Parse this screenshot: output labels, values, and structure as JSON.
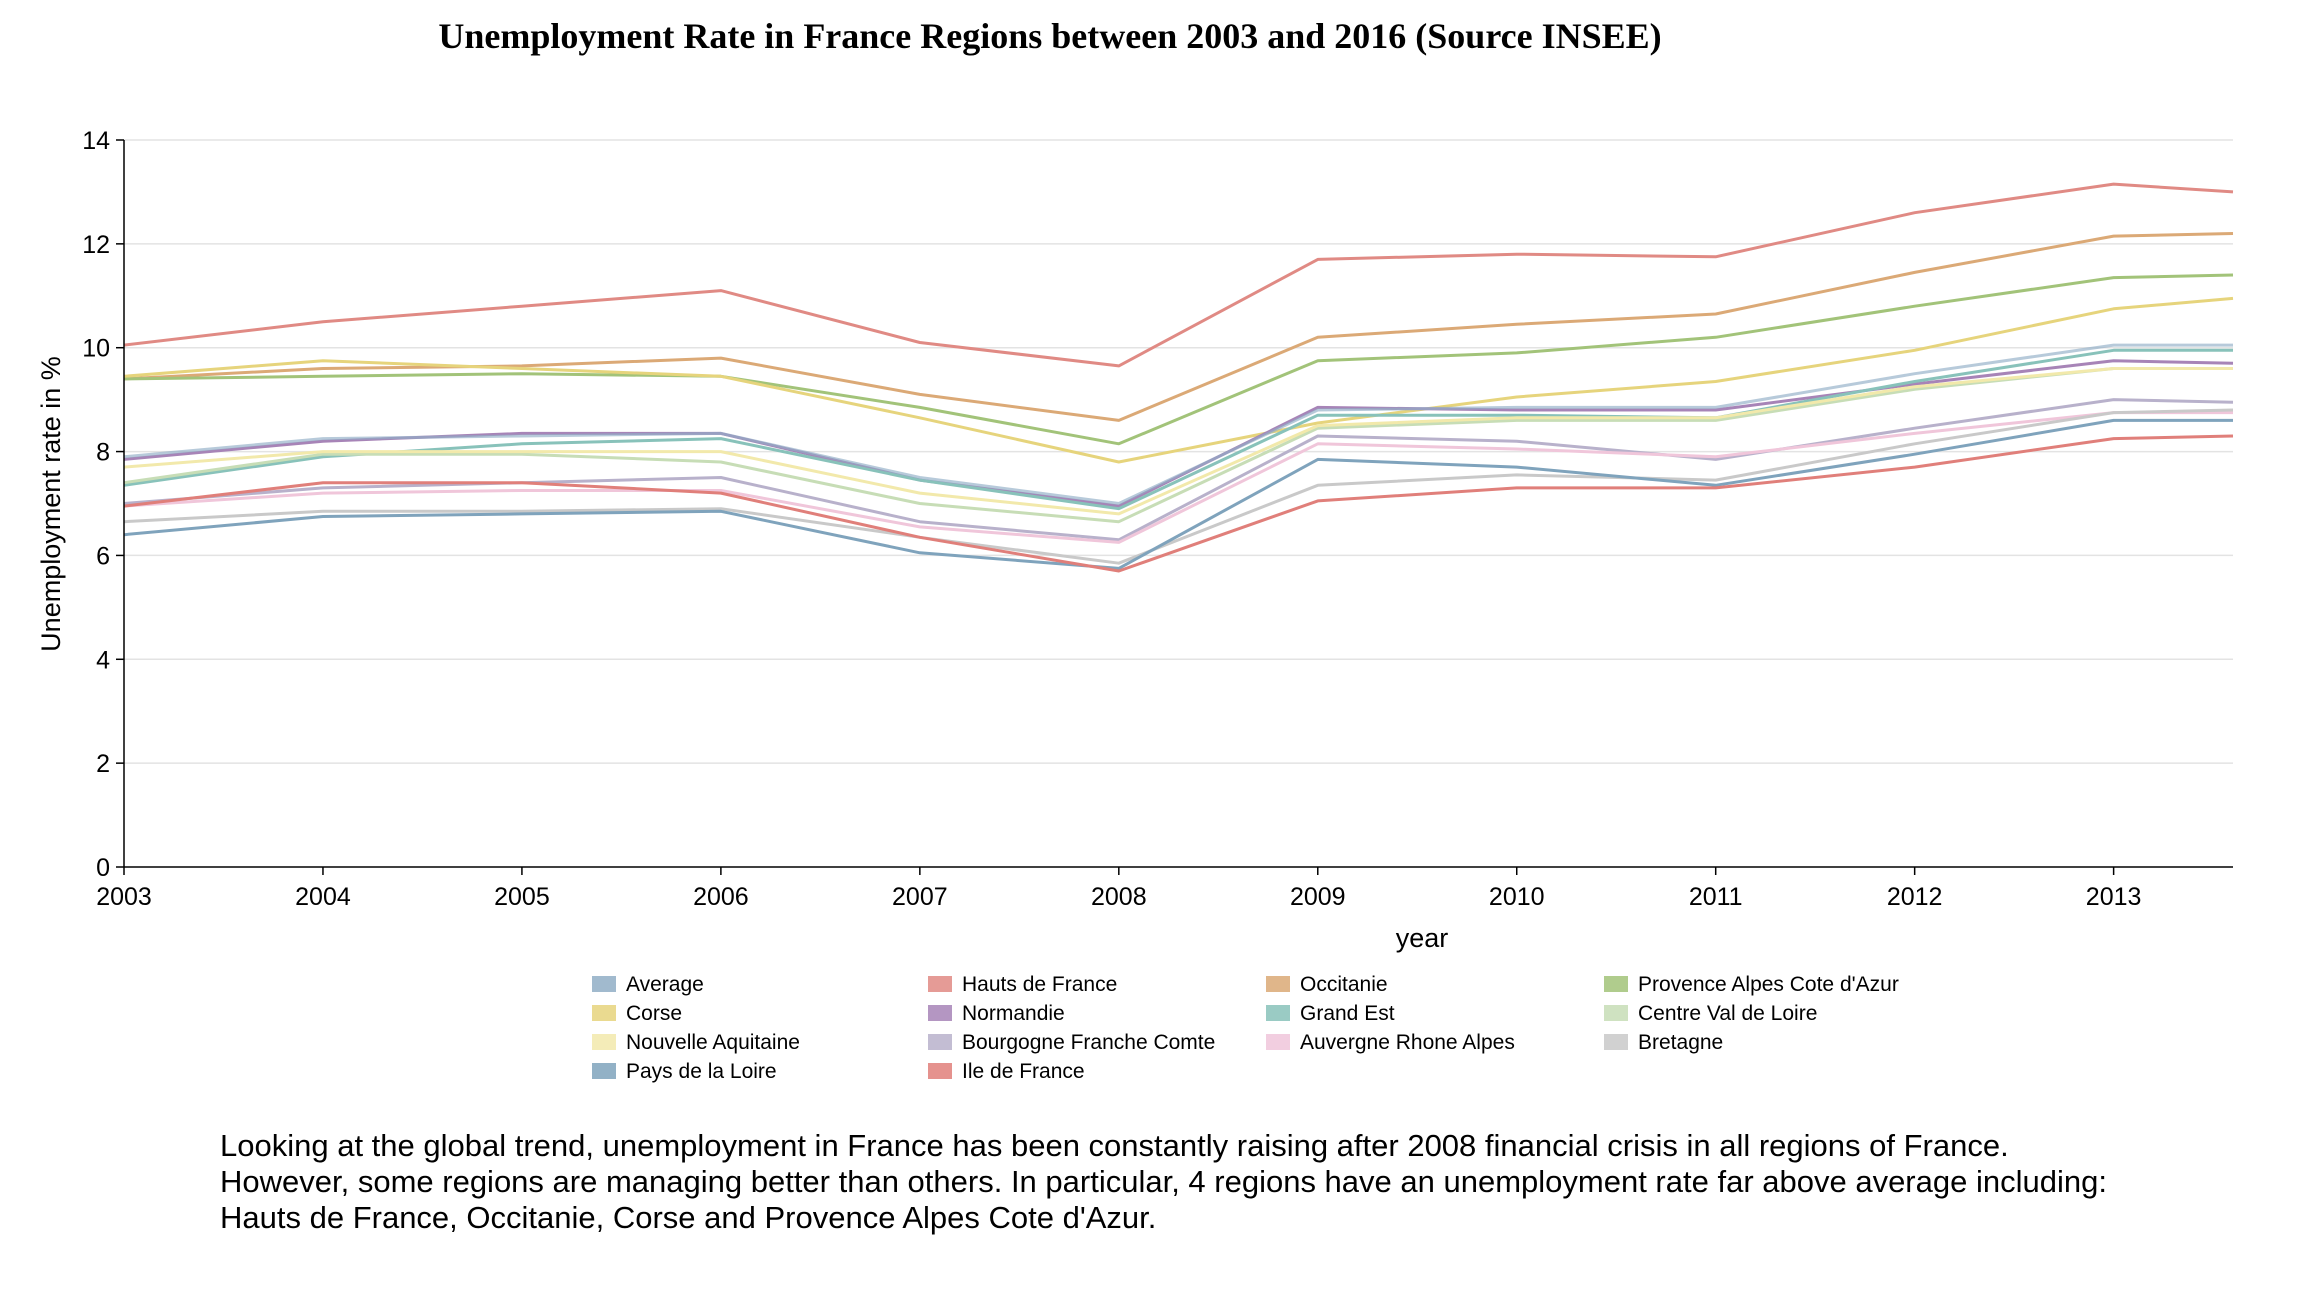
{
  "chart_data": {
    "type": "line",
    "title": "Unemployment Rate in France Regions between 2003 and 2016 (Source INSEE)",
    "xlabel": "year",
    "ylabel": "Unemployment rate in %",
    "xlim": [
      2003,
      2013.6
    ],
    "ylim": [
      0,
      14
    ],
    "x_ticks": [
      "2003",
      "2004",
      "2005",
      "2006",
      "2007",
      "2008",
      "2009",
      "2010",
      "2011",
      "2012",
      "2013"
    ],
    "y_ticks": [
      "0",
      "2",
      "4",
      "6",
      "8",
      "10",
      "12",
      "14"
    ],
    "grid": true,
    "legend_position": "bottom",
    "x": [
      2003,
      2004,
      2005,
      2006,
      2007,
      2008,
      2009,
      2010,
      2011,
      2012,
      2013,
      2013.6
    ],
    "series": [
      {
        "name": "Average",
        "color": "#90aec6",
        "values": [
          7.9,
          8.25,
          8.3,
          8.35,
          7.5,
          7.0,
          8.8,
          8.85,
          8.85,
          9.5,
          10.05,
          10.05
        ]
      },
      {
        "name": "Hauts de France",
        "color": "#e08a84",
        "values": [
          10.05,
          10.5,
          10.8,
          11.1,
          10.1,
          9.65,
          11.7,
          11.8,
          11.75,
          12.6,
          13.15,
          13.0
        ]
      },
      {
        "name": "Occitanie",
        "color": "#dba976",
        "values": [
          9.4,
          9.6,
          9.65,
          9.8,
          9.1,
          8.6,
          10.2,
          10.45,
          10.65,
          11.45,
          12.15,
          12.2
        ]
      },
      {
        "name": "Provence Alpes Cote d'Azur",
        "color": "#a2c379",
        "values": [
          9.4,
          9.45,
          9.5,
          9.45,
          8.85,
          8.15,
          9.75,
          9.9,
          10.2,
          10.8,
          11.35,
          11.4
        ]
      },
      {
        "name": "Corse",
        "color": "#e6d47c",
        "values": [
          9.45,
          9.75,
          9.6,
          9.45,
          8.65,
          7.8,
          8.55,
          9.05,
          9.35,
          9.95,
          10.75,
          10.95
        ]
      },
      {
        "name": "Normandie",
        "color": "#a784b7",
        "values": [
          7.85,
          8.2,
          8.35,
          8.35,
          7.45,
          6.95,
          8.85,
          8.8,
          8.8,
          9.3,
          9.75,
          9.7
        ]
      },
      {
        "name": "Grand Est",
        "color": "#88c2ba",
        "values": [
          7.35,
          7.9,
          8.15,
          8.25,
          7.45,
          6.9,
          8.7,
          8.7,
          8.65,
          9.35,
          9.95,
          9.95
        ]
      },
      {
        "name": "Centre Val de Loire",
        "color": "#c7ddb6",
        "values": [
          7.4,
          7.95,
          7.95,
          7.8,
          7.0,
          6.65,
          8.45,
          8.6,
          8.6,
          9.2,
          9.6,
          9.6
        ]
      },
      {
        "name": "Nouvelle Aquitaine",
        "color": "#f2e9ab",
        "values": [
          7.7,
          8.0,
          8.0,
          8.0,
          7.2,
          6.8,
          8.5,
          8.65,
          8.65,
          9.25,
          9.6,
          9.6
        ]
      },
      {
        "name": "Bourgogne Franche Comte",
        "color": "#b8b1cb",
        "values": [
          7.0,
          7.3,
          7.4,
          7.5,
          6.65,
          6.3,
          8.3,
          8.2,
          7.85,
          8.45,
          9.0,
          8.95
        ]
      },
      {
        "name": "Auvergne Rhone Alpes",
        "color": "#f0c6da",
        "values": [
          6.95,
          7.2,
          7.25,
          7.25,
          6.55,
          6.25,
          8.15,
          8.05,
          7.9,
          8.35,
          8.75,
          8.75
        ]
      },
      {
        "name": "Bretagne",
        "color": "#c9c9c9",
        "values": [
          6.65,
          6.85,
          6.85,
          6.9,
          6.35,
          5.85,
          7.35,
          7.55,
          7.45,
          8.15,
          8.75,
          8.8
        ]
      },
      {
        "name": "Pays de la Loire",
        "color": "#7fa3bc",
        "values": [
          6.4,
          6.75,
          6.8,
          6.85,
          6.05,
          5.75,
          7.85,
          7.7,
          7.35,
          7.95,
          8.6,
          8.6
        ]
      },
      {
        "name": "Ile de France",
        "color": "#e07f7a",
        "values": [
          6.95,
          7.4,
          7.4,
          7.2,
          6.35,
          5.7,
          7.05,
          7.3,
          7.3,
          7.7,
          8.25,
          8.3
        ]
      }
    ]
  },
  "description": "Looking at the global trend, unemployment in France has been constantly raising after 2008 financial crisis in all regions of France. However, some regions are managing better than others. In particular, 4 regions have an unemployment rate far above average including: Hauts de France, Occitanie, Corse and Provence Alpes Cote d'Azur."
}
